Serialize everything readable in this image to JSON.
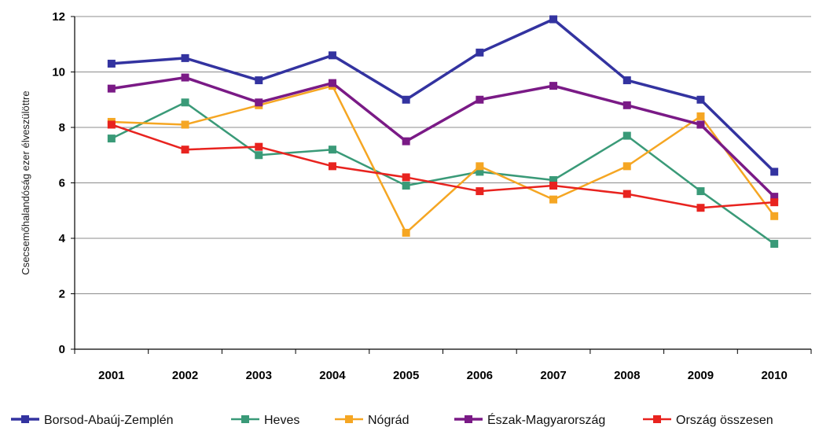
{
  "chart_data": {
    "type": "line",
    "title": "",
    "xlabel": "",
    "ylabel": "Csecsemőhalandóság ezer élveszülöttre",
    "x": [
      "2001",
      "2002",
      "2003",
      "2004",
      "2005",
      "2006",
      "2007",
      "2008",
      "2009",
      "2010"
    ],
    "ylim": [
      0,
      12
    ],
    "yticks": [
      0,
      2,
      4,
      6,
      8,
      10,
      12
    ],
    "grid": true,
    "legend_position": "bottom",
    "series": [
      {
        "name": "Borsod-Abaúj-Zemplén",
        "color": "#3333a0",
        "values": [
          10.3,
          10.5,
          9.7,
          10.6,
          9.0,
          10.7,
          11.9,
          9.7,
          9.0,
          6.4
        ]
      },
      {
        "name": "Heves",
        "color": "#3a9a78",
        "values": [
          7.6,
          8.9,
          7.0,
          7.2,
          5.9,
          6.4,
          6.1,
          7.7,
          5.7,
          3.8
        ]
      },
      {
        "name": "Nógrád",
        "color": "#f5a623",
        "values": [
          8.2,
          8.1,
          8.8,
          9.5,
          4.2,
          6.6,
          5.4,
          6.6,
          8.4,
          4.8
        ]
      },
      {
        "name": "Észak-Magyarország",
        "color": "#7a1a86",
        "values": [
          9.4,
          9.8,
          8.9,
          9.6,
          7.5,
          9.0,
          9.5,
          8.8,
          8.1,
          5.5
        ]
      },
      {
        "name": "Ország összesen",
        "color": "#e8231f",
        "values": [
          8.1,
          7.2,
          7.3,
          6.6,
          6.2,
          5.7,
          5.9,
          5.6,
          5.1,
          5.3
        ]
      }
    ]
  }
}
